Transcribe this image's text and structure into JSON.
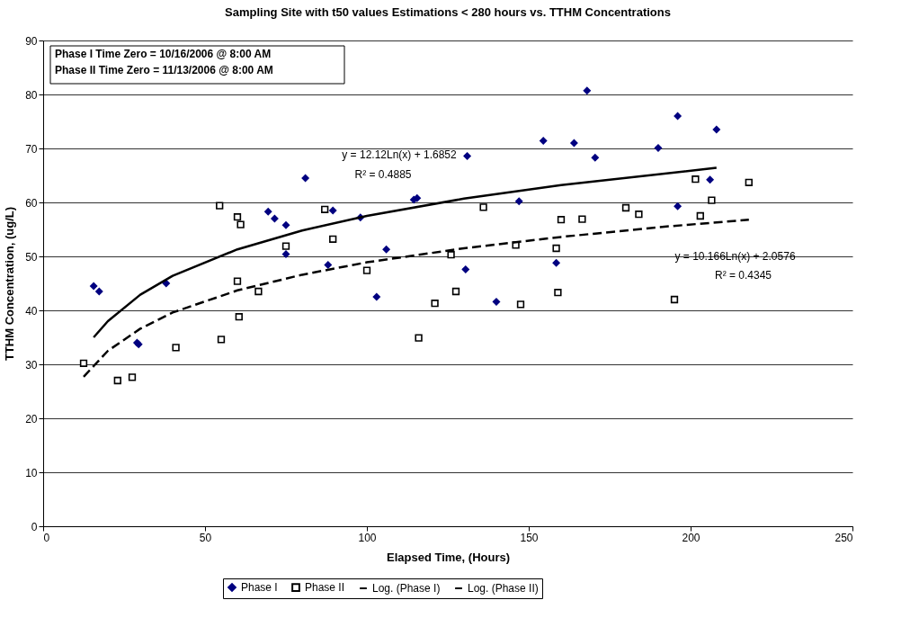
{
  "chart_data": {
    "type": "scatter",
    "title": "Sampling Site with t50 values Estimations < 280 hours  vs. TTHM Concentrations",
    "xlabel": "Elapsed Time, (Hours)",
    "ylabel": "TTHM Concentration, (ug/L)",
    "xlim": [
      0,
      250
    ],
    "xticks": [
      0,
      50,
      100,
      150,
      200,
      250
    ],
    "ylim": [
      0,
      90
    ],
    "yticks": [
      0,
      10,
      20,
      30,
      40,
      50,
      60,
      70,
      80,
      90
    ],
    "grid": "y",
    "legend": "bottom",
    "series": [
      {
        "name": "Phase I",
        "type": "scatter",
        "marker": "diamond",
        "color": "#000080",
        "x": [
          15.6,
          17.3,
          29,
          29.5,
          38,
          69.5,
          71.5,
          75,
          75,
          81,
          88,
          89.5,
          98,
          103,
          106,
          114.5,
          115.5,
          131,
          130.5,
          140,
          147,
          154.5,
          158.5,
          164,
          168,
          170.5,
          190,
          196,
          196,
          206,
          208
        ],
        "values": [
          44.5,
          43.5,
          34,
          33.7,
          45,
          58.3,
          57,
          55.8,
          50.4,
          64.5,
          48.4,
          58.5,
          57.2,
          42.5,
          51.3,
          60.5,
          60.8,
          68.6,
          47.6,
          41.6,
          60.2,
          71.4,
          48.8,
          71,
          80.7,
          68.3,
          70.1,
          76,
          59.3,
          64.2,
          73.5
        ]
      },
      {
        "name": "Phase II",
        "type": "scatter",
        "marker": "square",
        "color": "#000000",
        "x": [
          12.5,
          23,
          27.5,
          41,
          54.5,
          55,
          60,
          60,
          60.5,
          61,
          66.5,
          75,
          87,
          89.5,
          100,
          116,
          121,
          126,
          127.5,
          136,
          146,
          147.5,
          158.5,
          159,
          160,
          166.5,
          180,
          184,
          195,
          201.5,
          203,
          206.5,
          218
        ],
        "values": [
          30.2,
          27,
          27.6,
          33.1,
          59.4,
          34.6,
          57.3,
          45.4,
          38.8,
          55.9,
          43.5,
          51.9,
          58.7,
          53.2,
          47.4,
          34.9,
          41.3,
          50.3,
          43.5,
          59.1,
          52.1,
          41.1,
          51.5,
          43.3,
          56.8,
          56.9,
          59,
          57.8,
          42,
          64.3,
          57.5,
          60.4,
          63.7
        ]
      },
      {
        "name": "Log. (Phase I)",
        "type": "line",
        "line_style": "solid",
        "color": "#000000",
        "x": [
          15.6,
          20,
          30,
          40,
          60,
          80,
          100,
          130,
          160,
          208
        ],
        "values": [
          35.0,
          38.0,
          42.9,
          46.4,
          51.3,
          54.8,
          57.5,
          60.7,
          63.2,
          66.4
        ]
      },
      {
        "name": "Log. (Phase II)",
        "type": "line",
        "line_style": "dashed",
        "color": "#000000",
        "x": [
          12.5,
          20,
          30,
          40,
          60,
          80,
          100,
          130,
          160,
          190,
          218
        ],
        "values": [
          27.7,
          32.5,
          36.6,
          39.6,
          43.7,
          46.6,
          48.9,
          51.5,
          53.6,
          55.4,
          56.8
        ]
      }
    ],
    "annotations": [
      "Phase I Time Zero = 10/16/2006 @ 8:00 AM",
      "Phase II Time Zero = 11/13/2006 @ 8:00 AM",
      "y = 12.12Ln(x) + 1.6852",
      "R² = 0.4885",
      "y = 10.166Ln(x) + 2.0576",
      "R² = 0.4345"
    ]
  }
}
